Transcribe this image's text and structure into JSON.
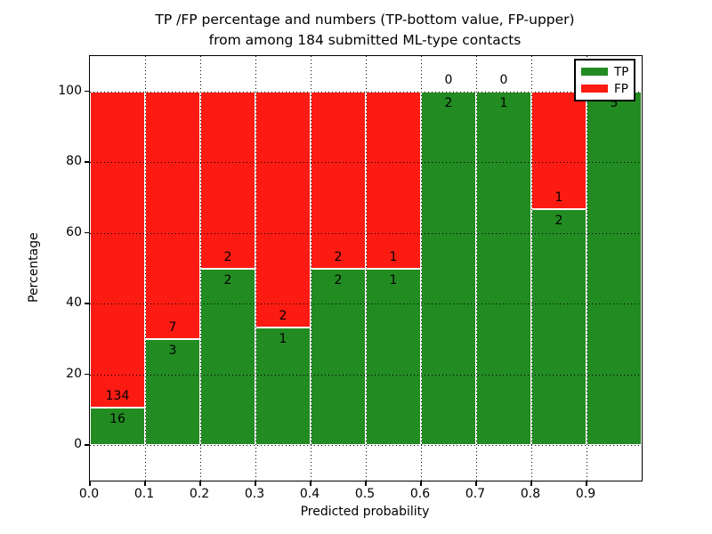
{
  "figure": {
    "title_line1": "TP /FP percentage and numbers (TP-bottom value, FP-upper)",
    "title_line2": "from among 184 submitted ML-type contacts"
  },
  "chart_data": {
    "type": "bar",
    "stacked": true,
    "normalized_to_percent": true,
    "title": "TP /FP percentage and numbers (TP-bottom value, FP-upper) from among 184 submitted ML-type contacts",
    "xlabel": "Predicted probability",
    "ylabel": "Percentage",
    "bin_starts": [
      0.0,
      0.1,
      0.2,
      0.3,
      0.4,
      0.5,
      0.6,
      0.7,
      0.8,
      0.9
    ],
    "bin_width": 0.1,
    "series": [
      {
        "name": "TP",
        "color": "#228b22",
        "counts": [
          16,
          3,
          2,
          1,
          2,
          1,
          2,
          1,
          2,
          5
        ]
      },
      {
        "name": "FP",
        "color": "#fb1b12",
        "counts": [
          134,
          7,
          2,
          2,
          2,
          1,
          0,
          0,
          1,
          0
        ]
      }
    ],
    "tp_percent": [
      10.67,
      30.0,
      50.0,
      33.33,
      50.0,
      50.0,
      100.0,
      100.0,
      66.67,
      100.0
    ],
    "xticks": [
      "0.0",
      "0.1",
      "0.2",
      "0.3",
      "0.4",
      "0.5",
      "0.6",
      "0.7",
      "0.8",
      "0.9"
    ],
    "yticks": [
      "0",
      "20",
      "40",
      "60",
      "80",
      "100"
    ],
    "ytick_values": [
      0,
      20,
      40,
      60,
      80,
      100
    ],
    "xlim": [
      0.0,
      1.0
    ],
    "ylim": [
      -10,
      110
    ],
    "grid": true,
    "grid_style": "dotted",
    "legend": {
      "position": "upper right",
      "entries": [
        {
          "label": "TP",
          "color": "#228b22"
        },
        {
          "label": "FP",
          "color": "#fb1b12"
        }
      ]
    }
  }
}
